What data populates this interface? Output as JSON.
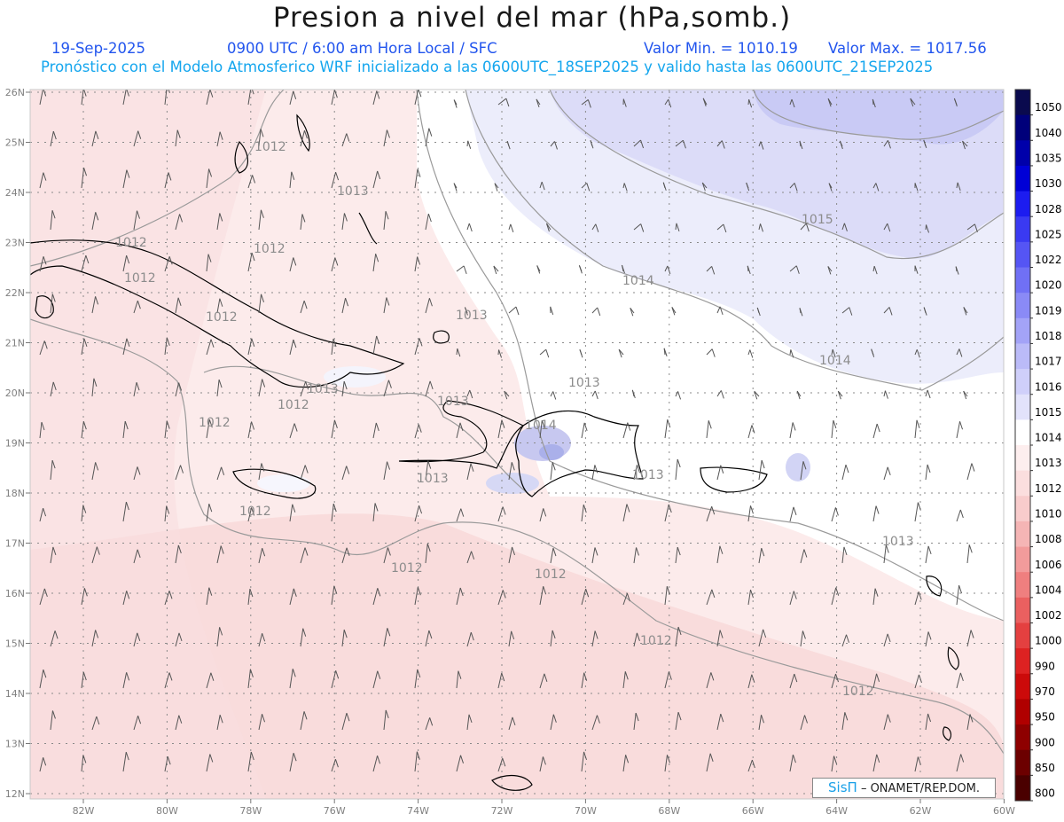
{
  "title": "Presion a nivel del mar (hPa,somb.)",
  "header": {
    "date": "19-Sep-2025",
    "time": "0900 UTC / 6:00 am Hora Local / SFC",
    "min_label": "Valor Min. = 1010.19",
    "max_label": "Valor Max. = 1017.56",
    "forecast": "Pronóstico con el Modelo Atmosferico WRF inicializado a las 0600UTC_18SEP2025 y valido hasta las  0600UTC_21SEP2025"
  },
  "axes": {
    "lon_labels": [
      "82W",
      "80W",
      "78W",
      "76W",
      "74W",
      "72W",
      "70W",
      "68W",
      "66W",
      "64W",
      "62W",
      "60W"
    ],
    "lat_labels": [
      "26N",
      "25N",
      "24N",
      "23N",
      "22N",
      "21N",
      "20N",
      "19N",
      "18N",
      "17N",
      "16N",
      "15N",
      "14N",
      "13N",
      "12N"
    ]
  },
  "colorbar": {
    "levels": [
      "1050",
      "1040",
      "1035",
      "1030",
      "1028",
      "1025",
      "1022",
      "1020",
      "1019",
      "1018",
      "1017",
      "1016",
      "1015",
      "1014",
      "1013",
      "1012",
      "1010",
      "1008",
      "1006",
      "1004",
      "1002",
      "1000",
      "990",
      "970",
      "950",
      "900",
      "850",
      "800"
    ],
    "colors": [
      "#0a0a4e",
      "#00007a",
      "#0000aa",
      "#0000d6",
      "#1c1cf0",
      "#3a3af2",
      "#5555f4",
      "#7070f5",
      "#8a8af6",
      "#a3a3f7",
      "#bbbbf8",
      "#cfcffa",
      "#e2e2fb",
      "#ffffff",
      "#fdeeee",
      "#fbdede",
      "#f8cccc",
      "#f5b5b5",
      "#f29b9b",
      "#ef7f7f",
      "#ea6060",
      "#e44040",
      "#dd2222",
      "#cc0a0a",
      "#b00000",
      "#8e0000",
      "#6c0000",
      "#4a0000"
    ]
  },
  "contour_labels": [
    "1012",
    "1013",
    "1012",
    "1012",
    "1012",
    "1012",
    "1013",
    "1014",
    "1015",
    "1014",
    "1013",
    "1013",
    "1012",
    "1013",
    "1014",
    "1012",
    "1013",
    "1012",
    "1013",
    "1013",
    "1012",
    "1012",
    "1012",
    "1012"
  ],
  "credit": {
    "brand": "SisΠ",
    "org": " – ONAMET/REP.DOM."
  }
}
